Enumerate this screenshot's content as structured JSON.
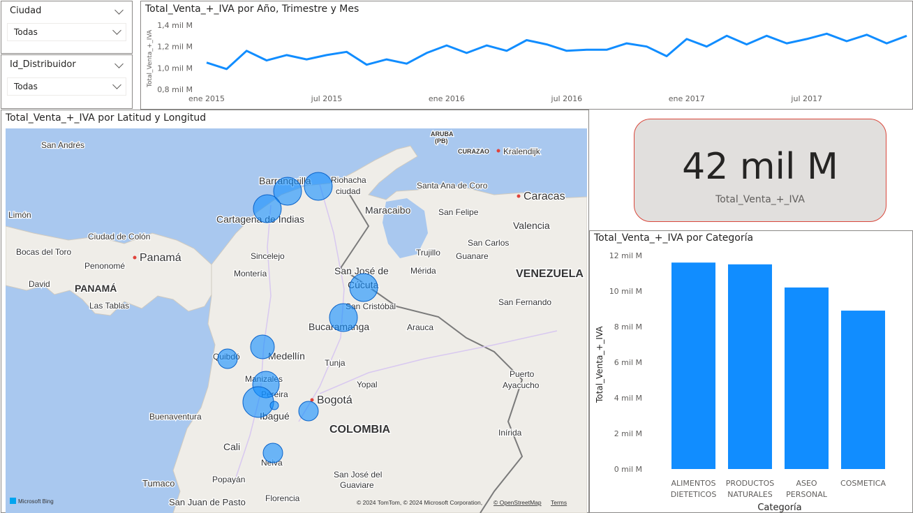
{
  "slicers": [
    {
      "title": "Ciudad",
      "value": "Todas"
    },
    {
      "title": "Id_Distribuidor",
      "value": "Todas"
    }
  ],
  "line_chart": {
    "title": "Total_Venta_+_IVA por Año, Trimestre y Mes",
    "ylabel": "Total_Venta_+_IVA",
    "y_ticks": [
      "1,4 mil M",
      "1,2 mil M",
      "1,0 mil M",
      "0,8 mil M"
    ],
    "x_ticks": [
      "ene 2015",
      "jul 2015",
      "ene 2016",
      "jul 2016",
      "ene 2017",
      "jul 2017"
    ],
    "color": "#118DFF"
  },
  "map": {
    "title": "Total_Venta_+_IVA por Latitud y Longitud",
    "labels": {
      "san_andres": "San Andrés",
      "aruba": "ARUBA",
      "aruba_pb": "(PB)",
      "curazao": "CURAZAO",
      "kralendijk": "Kralendijk",
      "barranquilla": "Barranquilla",
      "riohacha": "Riohacha",
      "riohacha2": "ciudad",
      "santa_ana": "Santa Ana de Coro",
      "caracas": "Caracas",
      "maracaibo": "Maracaibo",
      "san_felipe": "San Felipe",
      "valencia": "Valencia",
      "cartagena": "Cartagena de Indias",
      "limon": "Limón",
      "colon": "Ciudad de Colón",
      "bocas": "Bocas del Toro",
      "panama_city": "Panamá",
      "penonome": "Penonomé",
      "david": "David",
      "panama": "PANAMÁ",
      "las_tablas": "Las Tablas",
      "sincelejo": "Sincelejo",
      "monteria": "Montería",
      "trujillo": "Trujillo",
      "san_carlos": "San Carlos",
      "guanare": "Guanare",
      "san_jose_cucuta": "San José de",
      "cucuta": "Cúcuta",
      "merida": "Mérida",
      "venezuela": "VENEZUELA",
      "san_cristobal": "San Cristóbal",
      "san_fernando": "San Fernando",
      "bucaramanga": "Bucaramanga",
      "arauca": "Arauca",
      "quibdo": "Quibdó",
      "medellin": "Medellín",
      "tunja": "Tunja",
      "puerto": "Puerto",
      "ayacucho": "Ayacucho",
      "manizales": "Manizales",
      "pereira": "Pereira",
      "yopal": "Yopal",
      "bogota": "Bogotá",
      "buenaventura": "Buenaventura",
      "ibague": "Ibagué",
      "colombia": "COLOMBIA",
      "inirida": "Inírida",
      "cali": "Cali",
      "neiva": "Neiva",
      "san_jose_guaviare": "San José del",
      "guaviare": "Guaviare",
      "tumaco": "Tumaco",
      "popayan": "Popayán",
      "san_juan": "San Juan de Pasto",
      "florencia": "Florencia"
    },
    "bing": "Microsoft Bing",
    "copyright": "© 2024 TomTom, © 2024 Microsoft Corporation,",
    "osm": "© OpenStreetMap",
    "terms": "Terms",
    "bubble_color": "#118DFF"
  },
  "kpi": {
    "value": "42 mil M",
    "label": "Total_Venta_+_IVA"
  },
  "chart_data": [
    {
      "type": "line",
      "title": "Total_Venta_+_IVA por Año, Trimestre y Mes",
      "ylabel": "Total_Venta_+_IVA",
      "ylim": [
        0.8,
        1.4
      ],
      "unit": "mil M",
      "x": [
        "2015-01",
        "2015-02",
        "2015-03",
        "2015-04",
        "2015-05",
        "2015-06",
        "2015-07",
        "2015-08",
        "2015-09",
        "2015-10",
        "2015-11",
        "2015-12",
        "2016-01",
        "2016-02",
        "2016-03",
        "2016-04",
        "2016-05",
        "2016-06",
        "2016-07",
        "2016-08",
        "2016-09",
        "2016-10",
        "2016-11",
        "2016-12",
        "2017-01",
        "2017-02",
        "2017-03",
        "2017-04",
        "2017-05",
        "2017-06",
        "2017-07",
        "2017-08",
        "2017-09",
        "2017-10",
        "2017-11",
        "2017-12"
      ],
      "values": [
        1.05,
        0.99,
        1.16,
        1.07,
        1.12,
        1.08,
        1.12,
        1.15,
        1.03,
        1.08,
        1.04,
        1.14,
        1.21,
        1.14,
        1.21,
        1.16,
        1.26,
        1.22,
        1.16,
        1.17,
        1.17,
        1.23,
        1.2,
        1.11,
        1.27,
        1.2,
        1.3,
        1.22,
        1.3,
        1.23,
        1.27,
        1.32,
        1.25,
        1.31,
        1.23,
        1.3
      ]
    },
    {
      "type": "bar",
      "title": "Total_Venta_+_IVA por Categoría",
      "xlabel": "Categoría",
      "ylabel": "Total_Venta_+_IVA",
      "categories": [
        [
          "ALIMENTOS",
          "DIETETICOS"
        ],
        [
          "PRODUCTOS",
          "NATURALES"
        ],
        [
          "ASEO",
          "PERSONAL"
        ],
        [
          "COSMETICA"
        ]
      ],
      "values": [
        11.6,
        11.5,
        10.2,
        8.9
      ],
      "ylim": [
        0,
        12
      ],
      "y_ticks": [
        "12 mil M",
        "10 mil M",
        "8 mil M",
        "6 mil M",
        "4 mil M",
        "2 mil M",
        "0 mil M"
      ],
      "color": "#118DFF"
    }
  ]
}
